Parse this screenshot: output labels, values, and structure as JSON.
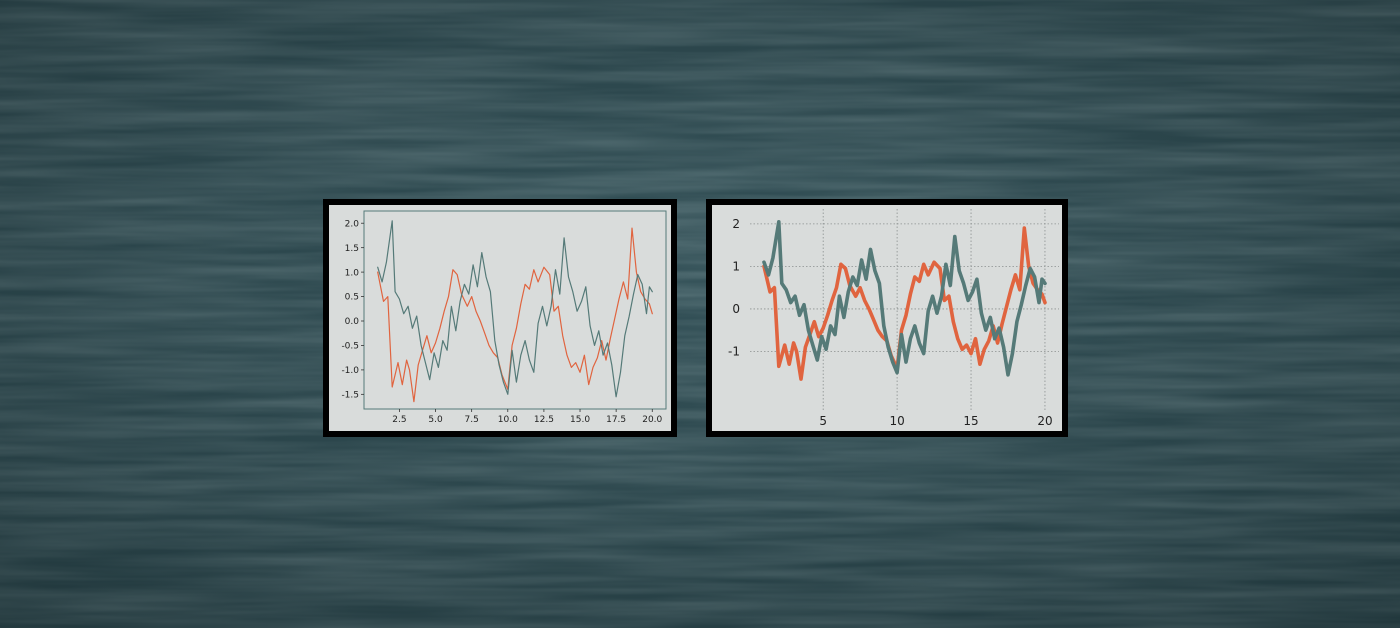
{
  "colors": {
    "background": "#2f4b52",
    "panel": "#d9dcdb",
    "frame": "#000000",
    "series_orange": "#e0643f",
    "series_teal": "#557a78",
    "grid": "#8a8f8f"
  },
  "chart_data": [
    {
      "type": "line",
      "style": "thin lines, no grid, boxed axes",
      "xlim": [
        0.05,
        20.95
      ],
      "ylim": [
        -1.8,
        2.25
      ],
      "xticks": [
        "2.5",
        "5.0",
        "7.5",
        "10.0",
        "12.5",
        "15.0",
        "17.5",
        "20.0"
      ],
      "yticks": [
        "2.0",
        "1.5",
        "1.0",
        "0.5",
        "0.0",
        "-0.5",
        "-1.0",
        "-1.5"
      ],
      "grid": false,
      "series": [
        {
          "color": "#e0643f",
          "x": [
            1.0,
            1.4,
            1.7,
            2.0,
            2.4,
            2.7,
            3.0,
            3.2,
            3.5,
            3.8,
            4.1,
            4.4,
            4.7,
            5.0,
            5.3,
            5.6,
            5.9,
            6.2,
            6.5,
            6.8,
            7.2,
            7.5,
            7.8,
            8.1,
            8.4,
            8.7,
            9.0,
            9.3,
            9.6,
            10.0,
            10.3,
            10.6,
            10.9,
            11.2,
            11.5,
            11.8,
            12.1,
            12.5,
            12.9,
            13.2,
            13.5,
            13.8,
            14.1,
            14.4,
            14.7,
            15.0,
            15.3,
            15.6,
            15.9,
            16.2,
            16.5,
            16.8,
            17.1,
            17.4,
            17.7,
            18.0,
            18.3,
            18.6,
            18.9,
            19.2,
            19.5,
            19.8,
            20.0
          ],
          "y": [
            1.0,
            0.4,
            0.5,
            -1.35,
            -0.85,
            -1.3,
            -0.8,
            -1.0,
            -1.65,
            -0.9,
            -0.6,
            -0.3,
            -0.65,
            -0.45,
            -0.15,
            0.2,
            0.5,
            1.05,
            0.95,
            0.55,
            0.3,
            0.5,
            0.2,
            0.0,
            -0.25,
            -0.5,
            -0.65,
            -0.75,
            -1.1,
            -1.4,
            -0.5,
            -0.15,
            0.35,
            0.75,
            0.65,
            1.05,
            0.8,
            1.1,
            0.95,
            0.2,
            0.3,
            -0.3,
            -0.7,
            -0.95,
            -0.85,
            -1.05,
            -0.7,
            -1.3,
            -0.95,
            -0.75,
            -0.4,
            -0.8,
            -0.35,
            0.05,
            0.45,
            0.8,
            0.45,
            1.9,
            1.0,
            0.6,
            0.45,
            0.35,
            0.15
          ]
        },
        {
          "color": "#557a78",
          "x": [
            1.0,
            1.3,
            1.6,
            2.0,
            2.2,
            2.5,
            2.8,
            3.1,
            3.4,
            3.7,
            4.0,
            4.3,
            4.6,
            4.9,
            5.2,
            5.5,
            5.8,
            6.1,
            6.4,
            6.7,
            7.0,
            7.3,
            7.6,
            7.9,
            8.2,
            8.5,
            8.8,
            9.1,
            9.4,
            9.7,
            10.0,
            10.3,
            10.6,
            10.9,
            11.2,
            11.5,
            11.8,
            12.1,
            12.4,
            12.7,
            13.0,
            13.3,
            13.6,
            13.9,
            14.2,
            14.5,
            14.8,
            15.1,
            15.4,
            15.7,
            16.0,
            16.3,
            16.6,
            16.9,
            17.2,
            17.5,
            17.8,
            18.1,
            18.4,
            18.7,
            19.0,
            19.3,
            19.6,
            19.8,
            20.0
          ],
          "y": [
            1.1,
            0.8,
            1.2,
            2.05,
            0.6,
            0.45,
            0.15,
            0.3,
            -0.15,
            0.1,
            -0.5,
            -0.85,
            -1.2,
            -0.65,
            -0.95,
            -0.4,
            -0.6,
            0.3,
            -0.2,
            0.4,
            0.75,
            0.55,
            1.15,
            0.7,
            1.4,
            0.9,
            0.6,
            -0.4,
            -0.9,
            -1.25,
            -1.5,
            -0.6,
            -1.25,
            -0.7,
            -0.4,
            -0.8,
            -1.05,
            -0.05,
            0.3,
            -0.1,
            0.3,
            1.05,
            0.55,
            1.7,
            0.9,
            0.6,
            0.2,
            0.4,
            0.7,
            -0.1,
            -0.5,
            -0.2,
            -0.7,
            -0.45,
            -0.9,
            -1.55,
            -1.05,
            -0.3,
            0.1,
            0.55,
            0.95,
            0.75,
            0.15,
            0.7,
            0.6
          ]
        }
      ]
    },
    {
      "type": "line",
      "style": "thick lines, dotted grid, no frame",
      "xlim": [
        0.05,
        20.95
      ],
      "ylim": [
        -2.4,
        2.35
      ],
      "xticks": [
        "5",
        "10",
        "15",
        "20"
      ],
      "yticks": [
        "2",
        "1",
        "0",
        "-1"
      ],
      "grid": true,
      "series": [
        {
          "color": "#e0643f",
          "x": [
            1.0,
            1.4,
            1.7,
            2.0,
            2.4,
            2.7,
            3.0,
            3.2,
            3.5,
            3.8,
            4.1,
            4.4,
            4.7,
            5.0,
            5.3,
            5.6,
            5.9,
            6.2,
            6.5,
            6.8,
            7.2,
            7.5,
            7.8,
            8.1,
            8.4,
            8.7,
            9.0,
            9.3,
            9.6,
            10.0,
            10.3,
            10.6,
            10.9,
            11.2,
            11.5,
            11.8,
            12.1,
            12.5,
            12.9,
            13.2,
            13.5,
            13.8,
            14.1,
            14.4,
            14.7,
            15.0,
            15.3,
            15.6,
            15.9,
            16.2,
            16.5,
            16.8,
            17.1,
            17.4,
            17.7,
            18.0,
            18.3,
            18.6,
            18.9,
            19.2,
            19.5,
            19.8,
            20.0
          ],
          "y": [
            1.0,
            0.4,
            0.5,
            -1.35,
            -0.85,
            -1.3,
            -0.8,
            -1.0,
            -1.65,
            -0.9,
            -0.6,
            -0.3,
            -0.65,
            -0.45,
            -0.15,
            0.2,
            0.5,
            1.05,
            0.95,
            0.55,
            0.3,
            0.5,
            0.2,
            0.0,
            -0.25,
            -0.5,
            -0.65,
            -0.75,
            -1.1,
            -1.4,
            -0.5,
            -0.15,
            0.35,
            0.75,
            0.65,
            1.05,
            0.8,
            1.1,
            0.95,
            0.2,
            0.3,
            -0.3,
            -0.7,
            -0.95,
            -0.85,
            -1.05,
            -0.7,
            -1.3,
            -0.95,
            -0.75,
            -0.4,
            -0.8,
            -0.35,
            0.05,
            0.45,
            0.8,
            0.45,
            1.9,
            1.0,
            0.6,
            0.45,
            0.35,
            0.15
          ]
        },
        {
          "color": "#557a78",
          "x": [
            1.0,
            1.3,
            1.6,
            2.0,
            2.2,
            2.5,
            2.8,
            3.1,
            3.4,
            3.7,
            4.0,
            4.3,
            4.6,
            4.9,
            5.2,
            5.5,
            5.8,
            6.1,
            6.4,
            6.7,
            7.0,
            7.3,
            7.6,
            7.9,
            8.2,
            8.5,
            8.8,
            9.1,
            9.4,
            9.7,
            10.0,
            10.3,
            10.6,
            10.9,
            11.2,
            11.5,
            11.8,
            12.1,
            12.4,
            12.7,
            13.0,
            13.3,
            13.6,
            13.9,
            14.2,
            14.5,
            14.8,
            15.1,
            15.4,
            15.7,
            16.0,
            16.3,
            16.6,
            16.9,
            17.2,
            17.5,
            17.8,
            18.1,
            18.4,
            18.7,
            19.0,
            19.3,
            19.6,
            19.8,
            20.0
          ],
          "y": [
            1.1,
            0.8,
            1.2,
            2.05,
            0.6,
            0.45,
            0.15,
            0.3,
            -0.15,
            0.1,
            -0.5,
            -0.85,
            -1.2,
            -0.65,
            -0.95,
            -0.4,
            -0.6,
            0.3,
            -0.2,
            0.4,
            0.75,
            0.55,
            1.15,
            0.7,
            1.4,
            0.9,
            0.6,
            -0.4,
            -0.9,
            -1.25,
            -1.5,
            -0.6,
            -1.25,
            -0.7,
            -0.4,
            -0.8,
            -1.05,
            -0.05,
            0.3,
            -0.1,
            0.3,
            1.05,
            0.55,
            1.7,
            0.9,
            0.6,
            0.2,
            0.4,
            0.7,
            -0.1,
            -0.5,
            -0.2,
            -0.7,
            -0.45,
            -0.9,
            -1.55,
            -1.05,
            -0.3,
            0.1,
            0.55,
            0.95,
            0.75,
            0.15,
            0.7,
            0.6
          ]
        }
      ]
    }
  ]
}
